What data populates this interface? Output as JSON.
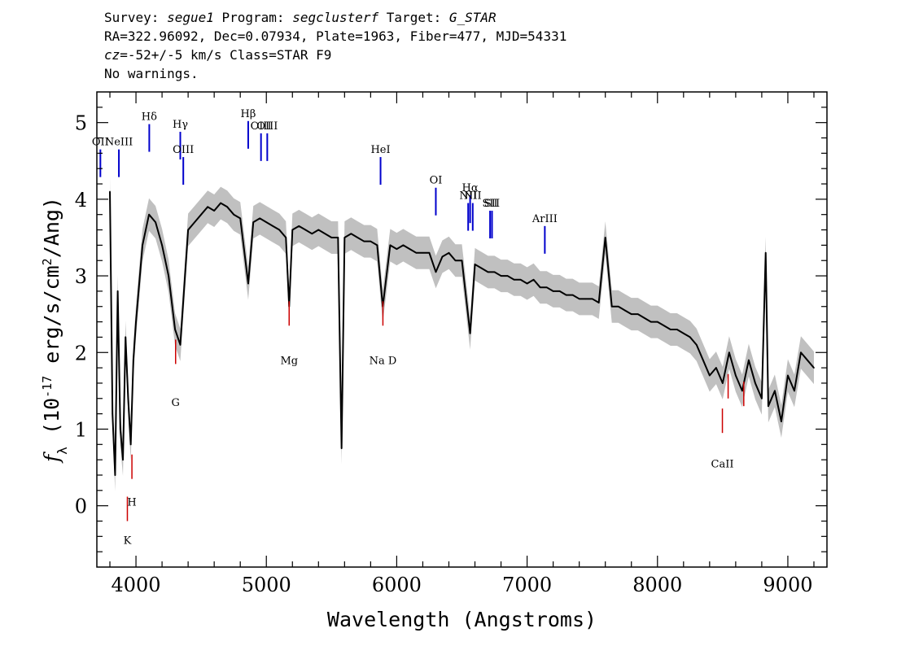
{
  "header": {
    "survey_label": "Survey: ",
    "survey": "segue1",
    "program_label": " Program: ",
    "program": "segclusterf",
    "target_label": " Target: ",
    "target": "G_STAR",
    "line2": "RA=322.96092, Dec=0.07934, Plate=1963, Fiber=477, MJD=54331",
    "cz_label": "cz",
    "cz_value": "=-52+/-5",
    "cz_rest": " km/s Class=STAR F9",
    "line4": "No warnings."
  },
  "chart_data": {
    "type": "line",
    "title": "",
    "xlabel": "Wavelength (Angstroms)",
    "ylabel": "fλ (10^-17 erg/s/cm^2/Ang)",
    "xlim": [
      3700,
      9300
    ],
    "ylim": [
      -0.8,
      5.4
    ],
    "xticks": [
      4000,
      5000,
      6000,
      7000,
      8000,
      9000
    ],
    "xtick_labels": [
      "4000",
      "5000",
      "6000",
      "7000",
      "8000",
      "9000"
    ],
    "yticks": [
      0,
      1,
      2,
      3,
      4,
      5
    ],
    "ytick_labels": [
      "0",
      "1",
      "2",
      "3",
      "4",
      "5"
    ],
    "colors": {
      "flux": "#000000",
      "error_band": "#c0c0c0",
      "emission": "#0000cc",
      "absorption": "#cc0000"
    },
    "series": [
      {
        "style": "black-line",
        "x": [
          3800,
          3820,
          3840,
          3860,
          3880,
          3900,
          3920,
          3940,
          3960,
          3980,
          4000,
          4050,
          4100,
          4150,
          4200,
          4250,
          4300,
          4340,
          4400,
          4450,
          4500,
          4550,
          4600,
          4650,
          4700,
          4750,
          4800,
          4861,
          4900,
          4950,
          5000,
          5050,
          5100,
          5150,
          5175,
          5200,
          5250,
          5300,
          5350,
          5400,
          5450,
          5500,
          5550,
          5577,
          5600,
          5650,
          5700,
          5750,
          5800,
          5850,
          5893,
          5950,
          6000,
          6050,
          6100,
          6150,
          6200,
          6250,
          6300,
          6350,
          6400,
          6450,
          6500,
          6563,
          6600,
          6650,
          6700,
          6750,
          6800,
          6850,
          6900,
          6950,
          7000,
          7050,
          7100,
          7150,
          7200,
          7250,
          7300,
          7350,
          7400,
          7450,
          7500,
          7550,
          7600,
          7650,
          7700,
          7750,
          7800,
          7850,
          7900,
          7950,
          8000,
          8050,
          8100,
          8150,
          8200,
          8250,
          8300,
          8350,
          8400,
          8450,
          8500,
          8550,
          8600,
          8650,
          8700,
          8750,
          8800,
          8830,
          8850,
          8900,
          8950,
          9000,
          9050,
          9100,
          9150,
          9200
        ],
        "values": [
          4.1,
          1.2,
          0.4,
          2.8,
          1.0,
          0.6,
          2.2,
          1.4,
          0.8,
          1.9,
          2.4,
          3.4,
          3.8,
          3.7,
          3.4,
          3.0,
          2.3,
          2.1,
          3.6,
          3.7,
          3.8,
          3.9,
          3.85,
          3.95,
          3.9,
          3.8,
          3.75,
          2.9,
          3.7,
          3.75,
          3.7,
          3.65,
          3.6,
          3.5,
          2.6,
          3.6,
          3.65,
          3.6,
          3.55,
          3.6,
          3.55,
          3.5,
          3.5,
          0.75,
          3.5,
          3.55,
          3.5,
          3.45,
          3.45,
          3.4,
          2.6,
          3.4,
          3.35,
          3.4,
          3.35,
          3.3,
          3.3,
          3.3,
          3.05,
          3.25,
          3.3,
          3.2,
          3.2,
          2.25,
          3.15,
          3.1,
          3.05,
          3.05,
          3.0,
          3.0,
          2.95,
          2.95,
          2.9,
          2.95,
          2.85,
          2.85,
          2.8,
          2.8,
          2.75,
          2.75,
          2.7,
          2.7,
          2.7,
          2.65,
          3.5,
          2.6,
          2.6,
          2.55,
          2.5,
          2.5,
          2.45,
          2.4,
          2.4,
          2.35,
          2.3,
          2.3,
          2.25,
          2.2,
          2.1,
          1.9,
          1.7,
          1.8,
          1.6,
          2.0,
          1.7,
          1.5,
          1.9,
          1.6,
          1.4,
          3.3,
          1.3,
          1.5,
          1.1,
          1.7,
          1.5,
          2.0,
          1.9,
          1.8
        ]
      }
    ],
    "emission_lines": [
      {
        "label": "OII",
        "x": 3727,
        "y": 4.65
      },
      {
        "label": "NeIII",
        "x": 3869,
        "y": 4.65
      },
      {
        "label": "Hδ",
        "x": 4102,
        "y": 4.98
      },
      {
        "label": "Hγ",
        "x": 4340,
        "y": 4.88
      },
      {
        "label": "OIII",
        "x": 4363,
        "y": 4.55
      },
      {
        "label": "Hβ",
        "x": 4861,
        "y": 5.02
      },
      {
        "label": "OIII",
        "x": 4959,
        "y": 4.86
      },
      {
        "label": "OIII",
        "x": 5007,
        "y": 4.86
      },
      {
        "label": "HeI",
        "x": 5876,
        "y": 4.55
      },
      {
        "label": "OI",
        "x": 6300,
        "y": 4.15
      },
      {
        "label": "NII",
        "x": 6548,
        "y": 3.95
      },
      {
        "label": "Hα",
        "x": 6563,
        "y": 4.05
      },
      {
        "label": "NII",
        "x": 6583,
        "y": 3.95
      },
      {
        "label": "SII",
        "x": 6716,
        "y": 3.85
      },
      {
        "label": "SII",
        "x": 6731,
        "y": 3.85
      },
      {
        "label": "ArIII",
        "x": 7136,
        "y": 3.65
      }
    ],
    "absorption_lines": [
      {
        "label": "K",
        "x": 3934,
        "y": -0.2
      },
      {
        "label": "H",
        "x": 3969,
        "y": 0.35
      },
      {
        "label": "G",
        "x": 4304,
        "y": 1.85
      },
      {
        "label": "Mg",
        "x": 5175,
        "y": 2.35
      },
      {
        "label": "Na",
        "x": 5894,
        "y": 2.35
      },
      {
        "label": "CaII",
        "x": 8498,
        "y": 0.95
      },
      {
        "label": "CaII",
        "x": 8542,
        "y": 1.4
      },
      {
        "label": "CaII",
        "x": 8662,
        "y": 1.3
      }
    ],
    "absorption_text": [
      {
        "text": "K",
        "x": 3934,
        "y": -0.5
      },
      {
        "text": "H",
        "x": 3969,
        "y": 0.0
      },
      {
        "text": "G",
        "x": 4304,
        "y": 1.3
      },
      {
        "text": "Mg",
        "x": 5175,
        "y": 1.85
      },
      {
        "text": "Na  D",
        "x": 5894,
        "y": 1.85
      },
      {
        "text": "CaII",
        "x": 8498,
        "y": 0.5
      }
    ]
  }
}
